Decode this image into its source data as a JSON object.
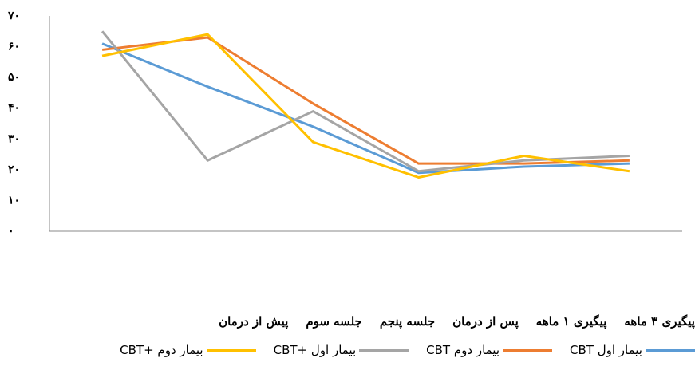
{
  "chart_data": {
    "type": "line",
    "categories": [
      "پیش از درمان",
      "جلسه سوم",
      "جلسه پنجم",
      "پس از درمان",
      "پیگیری ۱ ماهه",
      "پیگیری ۳ ماهه"
    ],
    "series": [
      {
        "name": "بیمار اول CBT",
        "color": "#5b9bd5",
        "values": [
          61,
          47,
          34,
          19,
          21,
          22
        ]
      },
      {
        "name": "بیمار دوم CBT",
        "color": "#ed7d31",
        "values": [
          59,
          63,
          41.5,
          22,
          22,
          23
        ]
      },
      {
        "name": "بیمار اول +CBT",
        "color": "#a5a5a5",
        "values": [
          65,
          23,
          39,
          19.5,
          23,
          24.5
        ]
      },
      {
        "name": "بیمار دوم +CBT",
        "color": "#ffc000",
        "values": [
          57,
          64,
          29,
          17.5,
          24.5,
          19.5
        ]
      }
    ],
    "ylim": [
      0,
      70
    ],
    "yticks": [
      {
        "value": 0,
        "label": "۰"
      },
      {
        "value": 10,
        "label": "۱۰"
      },
      {
        "value": 20,
        "label": "۲۰"
      },
      {
        "value": 30,
        "label": "۳۰"
      },
      {
        "value": 40,
        "label": "۴۰"
      },
      {
        "value": 50,
        "label": "۵۰"
      },
      {
        "value": 60,
        "label": "۶۰"
      },
      {
        "value": 70,
        "label": "۷۰"
      }
    ],
    "grid": false
  }
}
